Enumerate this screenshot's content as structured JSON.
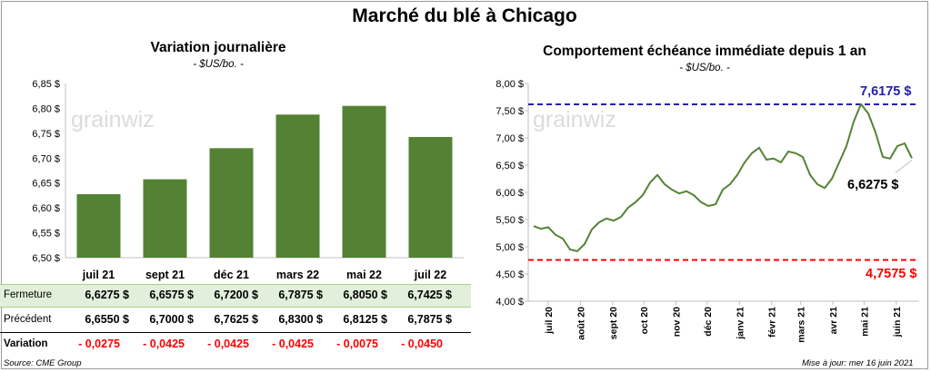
{
  "title": "Marché du blé à Chicago",
  "watermark": "grainwiz",
  "left": {
    "title": "Variation  journalière",
    "unit": "- $US/bo. -",
    "table": {
      "row_labels": [
        "Fermeture",
        "Précédent",
        "Variation"
      ],
      "fermeture": [
        "6,6275  $",
        "6,6575  $",
        "6,7200  $",
        "6,7875  $",
        "6,8050  $",
        "6,7425  $"
      ],
      "precedent": [
        "6,6550  $",
        "6,7000  $",
        "6,7625  $",
        "6,8300  $",
        "6,8125  $",
        "6,7875  $"
      ],
      "variation": [
        "- 0,0275",
        "- 0,0425",
        "- 0,0425",
        "- 0,0425",
        "- 0,0075",
        "- 0,0450"
      ]
    }
  },
  "right": {
    "title": "Comportement  échéance immédiate depuis 1 an",
    "unit": "- $US/bo. -",
    "max_label": "7,6175  $",
    "min_label": "4,7575  $",
    "last_label": "6,6275 $"
  },
  "footer": {
    "source": "Source: CME Group",
    "updated": "Mise à jour: mer 16 juin 2021"
  },
  "colors": {
    "bar": "#548235",
    "line": "#548235",
    "max_line": "#1f1fb4",
    "min_line": "#ff0000",
    "highlight_row": "#e2efda",
    "negative": "#ff0000"
  },
  "chart_data": [
    {
      "type": "bar",
      "categories": [
        "juil 21",
        "sept 21",
        "déc 21",
        "mars 22",
        "mai 22",
        "juil 22"
      ],
      "values": [
        6.6275,
        6.6575,
        6.72,
        6.7875,
        6.805,
        6.7425
      ],
      "ylim": [
        6.5,
        6.85
      ],
      "yticks": [
        "6,50 $",
        "6,55 $",
        "6,60 $",
        "6,65 $",
        "6,70 $",
        "6,75 $",
        "6,80 $",
        "6,85 $"
      ],
      "grid": false
    },
    {
      "type": "line",
      "x_labels": [
        "juil 20",
        "août 20",
        "sept 20",
        "oct 20",
        "nov 20",
        "déc 20",
        "janv 21",
        "févr 21",
        "mars 21",
        "avr 21",
        "mai 21",
        "juin 21"
      ],
      "x": [
        "2020-06-17",
        "2020-06-24",
        "2020-07-01",
        "2020-07-08",
        "2020-07-15",
        "2020-07-22",
        "2020-07-29",
        "2020-08-05",
        "2020-08-12",
        "2020-08-19",
        "2020-08-26",
        "2020-09-02",
        "2020-09-09",
        "2020-09-16",
        "2020-09-23",
        "2020-09-30",
        "2020-10-07",
        "2020-10-14",
        "2020-10-21",
        "2020-10-28",
        "2020-11-04",
        "2020-11-11",
        "2020-11-18",
        "2020-11-25",
        "2020-12-02",
        "2020-12-09",
        "2020-12-16",
        "2020-12-23",
        "2020-12-30",
        "2021-01-06",
        "2021-01-13",
        "2021-01-20",
        "2021-01-27",
        "2021-02-03",
        "2021-02-10",
        "2021-02-17",
        "2021-02-24",
        "2021-03-03",
        "2021-03-10",
        "2021-03-17",
        "2021-03-24",
        "2021-03-31",
        "2021-04-07",
        "2021-04-14",
        "2021-04-21",
        "2021-04-28",
        "2021-05-05",
        "2021-05-12",
        "2021-05-19",
        "2021-05-26",
        "2021-06-02",
        "2021-06-09",
        "2021-06-16"
      ],
      "series": [
        {
          "values": [
            5.38,
            5.33,
            5.36,
            5.22,
            5.15,
            4.95,
            4.92,
            5.05,
            5.32,
            5.45,
            5.52,
            5.48,
            5.55,
            5.72,
            5.82,
            5.95,
            6.18,
            6.32,
            6.15,
            6.05,
            5.98,
            6.02,
            5.95,
            5.82,
            5.75,
            5.78,
            6.05,
            6.15,
            6.32,
            6.55,
            6.72,
            6.82,
            6.6,
            6.62,
            6.55,
            6.75,
            6.72,
            6.65,
            6.32,
            6.15,
            6.08,
            6.25,
            6.55,
            6.85,
            7.3,
            7.62,
            7.45,
            7.1,
            6.65,
            6.62,
            6.85,
            6.9,
            6.6275
          ]
        }
      ],
      "ylim": [
        4.0,
        8.0
      ],
      "yticks": [
        "4,00 $",
        "4,50 $",
        "5,00 $",
        "5,50 $",
        "6,00 $",
        "6,50 $",
        "7,00 $",
        "7,50 $",
        "8,00 $"
      ],
      "max": 7.6175,
      "min": 4.7575,
      "last": 6.6275,
      "grid": false
    }
  ]
}
